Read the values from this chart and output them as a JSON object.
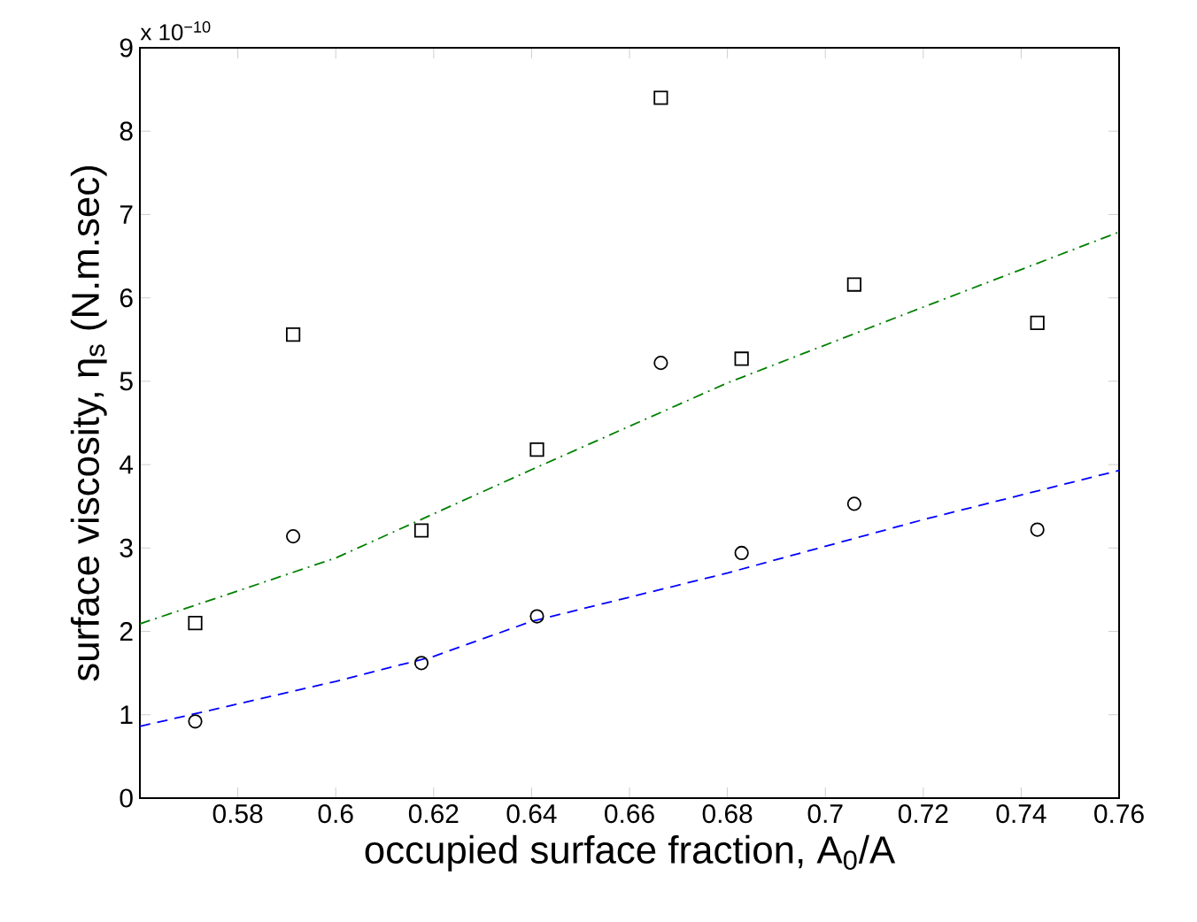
{
  "chart_data": {
    "type": "scatter",
    "xlabel": "occupied surface fraction, A$_{0}$/A",
    "ylabel": "surface viscosity, η$_{s}$ (N.m.sec)",
    "annotations": [
      "x 10$^{−10}$"
    ],
    "xlim": [
      0.56,
      0.76
    ],
    "xticks": [
      0.58,
      0.6,
      0.62,
      0.64,
      0.66,
      0.68,
      0.7,
      0.72,
      0.74,
      0.76
    ],
    "ylim": [
      0,
      9
    ],
    "yticks": [
      0,
      1,
      2,
      3,
      4,
      5,
      6,
      7,
      8,
      9
    ],
    "grid": false,
    "series": [
      {
        "marker": "square",
        "color": "#000000",
        "x": [
          0.5713,
          0.5913,
          0.6175,
          0.6411,
          0.6664,
          0.6829,
          0.7059,
          0.7433
        ],
        "values": [
          2.1,
          5.56,
          3.21,
          4.18,
          8.4,
          5.27,
          6.16,
          5.7
        ]
      },
      {
        "marker": "circle",
        "color": "#000000",
        "x": [
          0.5713,
          0.5913,
          0.6175,
          0.6411,
          0.6664,
          0.6829,
          0.7059,
          0.7433
        ],
        "values": [
          0.92,
          3.14,
          1.62,
          2.18,
          5.22,
          2.94,
          3.53,
          3.22
        ]
      },
      {
        "type": "line",
        "marker": "none",
        "line_style": "dashdot",
        "color": "#008000",
        "x": [
          0.56,
          0.6,
          0.64,
          0.68,
          0.72,
          0.76
        ],
        "values": [
          2.09,
          2.88,
          3.94,
          4.98,
          5.89,
          6.79
        ]
      },
      {
        "type": "line",
        "marker": "none",
        "line_style": "dashed",
        "color": "#0000ff",
        "x": [
          0.56,
          0.6,
          0.62,
          0.64,
          0.68,
          0.72,
          0.76
        ],
        "values": [
          0.86,
          1.4,
          1.7,
          2.12,
          2.7,
          3.34,
          3.93
        ]
      }
    ]
  }
}
